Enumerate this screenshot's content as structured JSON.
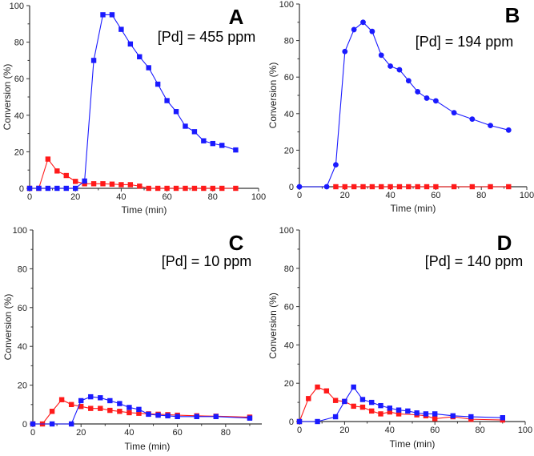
{
  "chart_data": [
    {
      "type": "line",
      "panel": "A",
      "letter": "A",
      "annotation": "[Pd] = 455 ppm",
      "xlabel": "Time (min)",
      "ylabel": "Conversion (%)",
      "xlim": [
        0,
        100
      ],
      "ylim": [
        0,
        100
      ],
      "xticks": [
        0,
        20,
        40,
        60,
        80,
        100
      ],
      "yticks": [
        0,
        20,
        40,
        60,
        80,
        100
      ],
      "series": [
        {
          "name": "red",
          "color": "#ff1a1a",
          "marker": "square",
          "x": [
            0,
            4,
            8,
            12,
            16,
            20,
            24,
            28,
            32,
            36,
            40,
            44,
            48,
            52,
            56,
            60,
            64,
            68,
            72,
            76,
            80,
            84,
            90
          ],
          "y": [
            0,
            0,
            16,
            9.5,
            7,
            3.8,
            2.5,
            2.5,
            2.5,
            2.3,
            2,
            2,
            1.2,
            0,
            0,
            0,
            0,
            0,
            0,
            0,
            0,
            0,
            0
          ]
        },
        {
          "name": "blue",
          "color": "#1a1aff",
          "marker": "square",
          "x": [
            0,
            4,
            8,
            12,
            16,
            20,
            24,
            28,
            32,
            36,
            40,
            44,
            48,
            52,
            56,
            60,
            64,
            68,
            72,
            76,
            80,
            84,
            90
          ],
          "y": [
            0,
            0,
            0,
            0,
            0,
            0,
            4,
            70,
            95,
            95,
            87,
            79,
            72,
            66,
            57,
            48,
            42,
            34,
            31,
            26,
            24.5,
            23.5,
            21
          ]
        }
      ]
    },
    {
      "type": "line",
      "panel": "B",
      "letter": "B",
      "annotation": "[Pd] = 194 ppm",
      "xlabel": "Time (min)",
      "ylabel": "Conversion (%)",
      "xlim": [
        0,
        100
      ],
      "ylim": [
        0,
        100
      ],
      "xticks": [
        0,
        20,
        40,
        60,
        80,
        100
      ],
      "yticks": [
        0,
        20,
        40,
        60,
        80,
        100
      ],
      "series": [
        {
          "name": "red",
          "color": "#ff1a1a",
          "marker": "square",
          "x": [
            16,
            20,
            24,
            28,
            32,
            36,
            40,
            44,
            48,
            52,
            56,
            60,
            68,
            76,
            84,
            92
          ],
          "y": [
            0,
            0,
            0,
            0,
            0,
            0,
            0,
            0,
            0,
            0,
            0,
            0,
            0,
            0,
            0,
            0
          ]
        },
        {
          "name": "blue",
          "color": "#1a1aff",
          "marker": "circle",
          "x": [
            0,
            12,
            16,
            20,
            24,
            28,
            32,
            36,
            40,
            44,
            48,
            52,
            56,
            60,
            68,
            76,
            84,
            92
          ],
          "y": [
            0,
            0,
            12,
            74,
            86,
            90,
            85,
            72,
            66,
            64,
            58,
            52,
            48.5,
            47,
            40.5,
            37,
            33.5,
            31
          ]
        }
      ]
    },
    {
      "type": "line",
      "panel": "C",
      "letter": "C",
      "annotation": "[Pd] = 10 ppm",
      "xlabel": "Time (min)",
      "ylabel": "Conversion (%)",
      "xlim": [
        0,
        95
      ],
      "ylim": [
        0,
        100
      ],
      "xticks": [
        0,
        20,
        40,
        60,
        80
      ],
      "yticks": [
        0,
        20,
        40,
        60,
        80,
        100
      ],
      "series": [
        {
          "name": "red",
          "color": "#ff1a1a",
          "marker": "square",
          "x": [
            0,
            4,
            8,
            12,
            16,
            20,
            24,
            28,
            32,
            36,
            40,
            44,
            48,
            52,
            56,
            60,
            68,
            76,
            90
          ],
          "y": [
            0,
            0,
            6.5,
            12.5,
            10,
            9,
            8,
            8,
            7,
            6.5,
            5.8,
            5.5,
            5.2,
            5,
            4.8,
            4.5,
            4.2,
            4,
            3.5
          ]
        },
        {
          "name": "blue",
          "color": "#1a1aff",
          "marker": "square",
          "x": [
            0,
            8,
            16,
            20,
            24,
            28,
            32,
            36,
            40,
            44,
            48,
            52,
            56,
            60,
            68,
            76,
            90
          ],
          "y": [
            0,
            0,
            0,
            12,
            14,
            13.5,
            12,
            10.5,
            8.5,
            7.5,
            5,
            4.5,
            4.2,
            3.8,
            3.8,
            3.8,
            3
          ]
        }
      ]
    },
    {
      "type": "line",
      "panel": "D",
      "letter": "D",
      "annotation": "[Pd] = 140 ppm",
      "xlabel": "Time (min)",
      "ylabel": "Conversion (%)",
      "xlim": [
        0,
        100
      ],
      "ylim": [
        0,
        100
      ],
      "xticks": [
        0,
        20,
        40,
        60,
        80,
        100
      ],
      "yticks": [
        0,
        20,
        40,
        60,
        80,
        100
      ],
      "series": [
        {
          "name": "red",
          "color": "#ff1a1a",
          "marker": "square",
          "x": [
            0,
            4,
            8,
            12,
            16,
            20,
            24,
            28,
            32,
            36,
            40,
            44,
            52,
            56,
            60,
            68,
            76,
            90
          ],
          "y": [
            0,
            12,
            18,
            16,
            11,
            10.5,
            8,
            7.5,
            5.5,
            4,
            5,
            4,
            3.5,
            3,
            1.5,
            2.5,
            1.2,
            0.8
          ]
        },
        {
          "name": "blue",
          "color": "#1a1aff",
          "marker": "square",
          "x": [
            0,
            8,
            16,
            20,
            24,
            28,
            32,
            36,
            40,
            44,
            48,
            52,
            56,
            60,
            68,
            76,
            90
          ],
          "y": [
            0,
            0,
            2.5,
            10.5,
            18,
            11.5,
            10,
            8.3,
            7,
            6,
            5.5,
            4.5,
            4,
            4,
            3,
            2.5,
            2
          ]
        }
      ]
    }
  ]
}
